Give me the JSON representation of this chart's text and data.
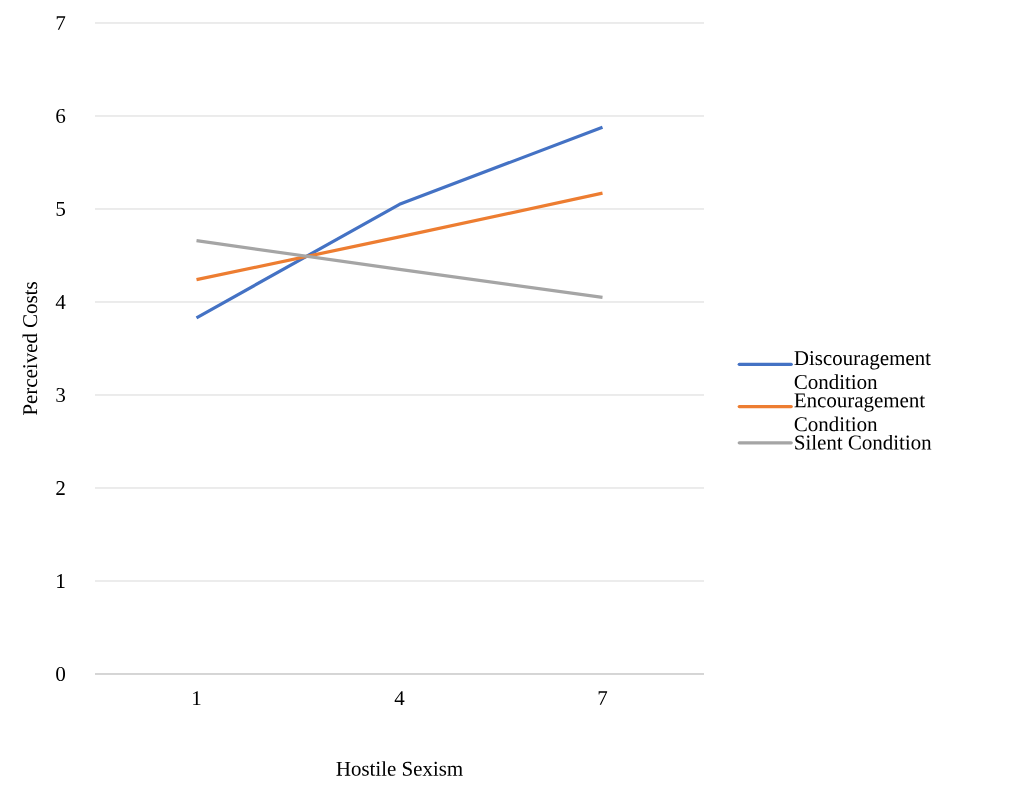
{
  "chart_data": {
    "type": "line",
    "xlabel": "Hostile Sexism",
    "ylabel": "Perceived Costs",
    "categories": [
      "1",
      "4",
      "7"
    ],
    "series": [
      {
        "name": "Discouragement Condition",
        "color": "#4472c4",
        "values": [
          3.83,
          5.05,
          5.88
        ]
      },
      {
        "name": "Encouragement Condition",
        "color": "#ed7d31",
        "values": [
          4.24,
          4.7,
          5.17
        ]
      },
      {
        "name": "Silent Condition",
        "color": "#a5a5a5",
        "values": [
          4.66,
          4.35,
          4.05
        ]
      }
    ],
    "ylim": [
      0,
      7
    ],
    "yticks": [
      0,
      1,
      2,
      3,
      4,
      5,
      6,
      7
    ],
    "grid": "y",
    "legend": "right",
    "marker": "none",
    "line_style": "solid"
  }
}
